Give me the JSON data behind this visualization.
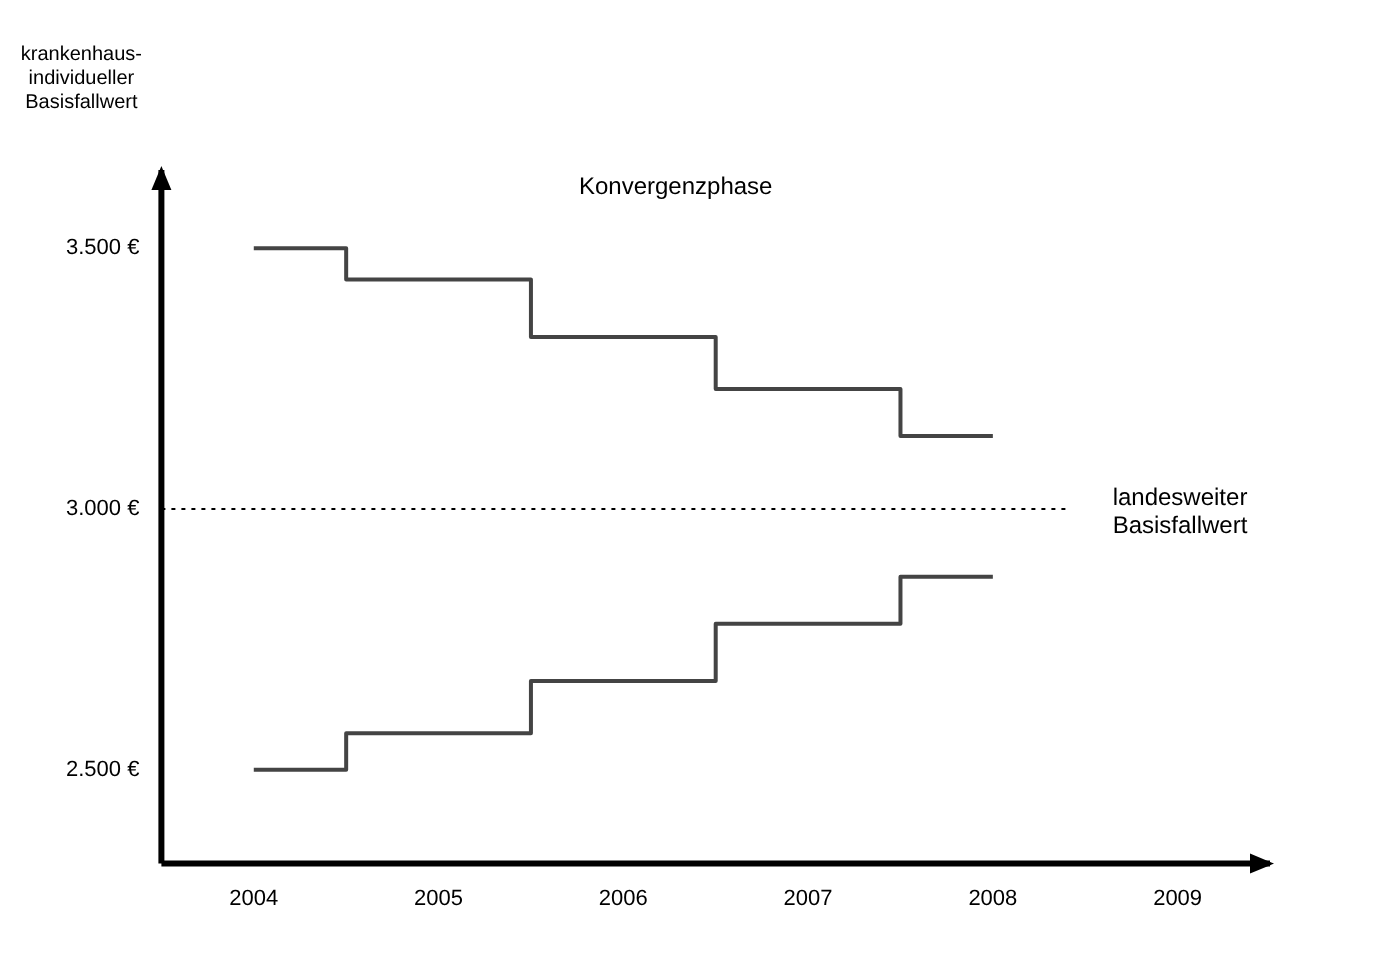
{
  "chart_data": {
    "type": "step",
    "ylabel": "krankenhaus-\nindividueller\nBasisfallwert",
    "categories": [
      "2004",
      "2005",
      "2006",
      "2007",
      "2008",
      "2009"
    ],
    "series": [
      {
        "color": "#444444",
        "values": [
          3500,
          3440,
          3330,
          3230,
          3140,
          null
        ]
      },
      {
        "color": "#444444",
        "values": [
          2500,
          2570,
          2670,
          2780,
          2870,
          null
        ]
      }
    ],
    "ylim": [
      2320,
      3650
    ],
    "yticks": [
      {
        "value": 2500,
        "label": "2.500 €"
      },
      {
        "value": 3000,
        "label": "3.000 €"
      },
      {
        "value": 3500,
        "label": "3.500 €"
      }
    ],
    "grid": false,
    "legend": false,
    "line_style": "solid",
    "marker": "none",
    "ref_lines": [
      {
        "axis": "y",
        "value": 3000,
        "label": "landesweiter\nBasisfallwert",
        "line_style": "dotted",
        "color": "#000000"
      }
    ],
    "annotations": [
      "Konvergenzphase"
    ]
  }
}
